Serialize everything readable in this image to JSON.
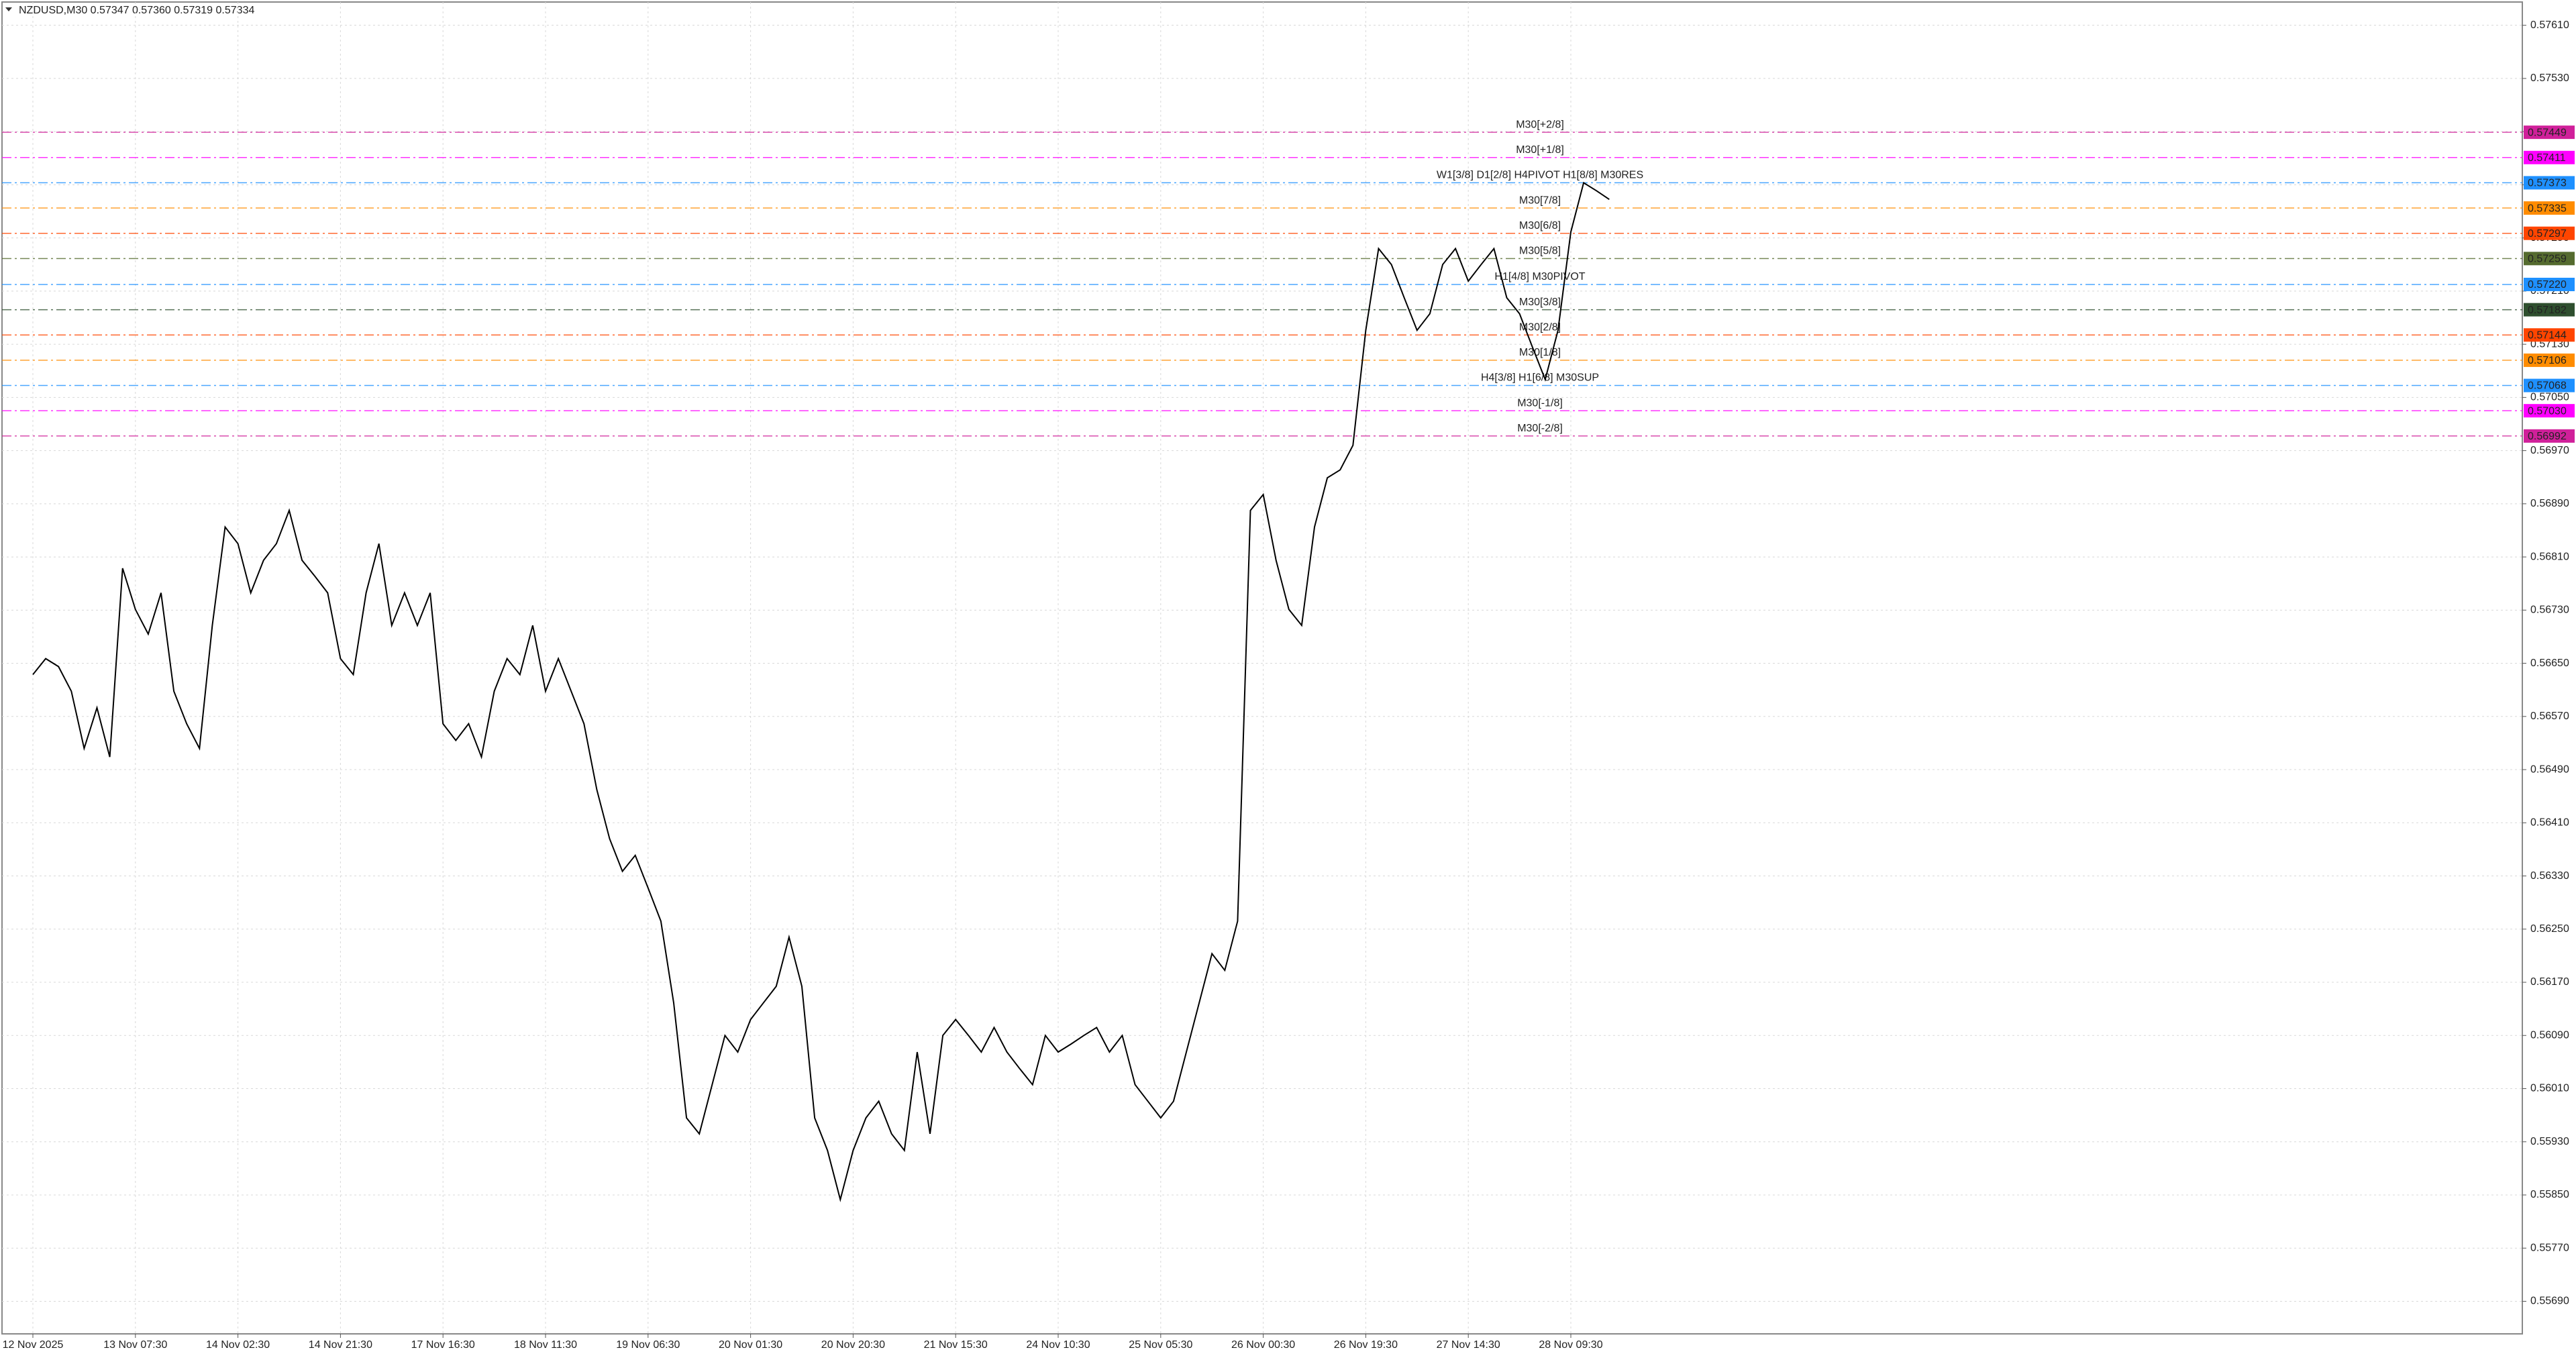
{
  "chart_data": {
    "type": "line",
    "title": "NZDUSD,M30  0.57347 0.57360 0.57319 0.57334",
    "categories": [
      "12 Nov 2025",
      null,
      null,
      null,
      null,
      null,
      null,
      null,
      "13 Nov 07:30",
      null,
      null,
      null,
      null,
      null,
      null,
      null,
      "14 Nov 02:30",
      null,
      null,
      null,
      null,
      null,
      null,
      null,
      "14 Nov 21:30",
      null,
      null,
      null,
      null,
      null,
      null,
      null,
      "17 Nov 16:30",
      null,
      null,
      null,
      null,
      null,
      null,
      null,
      "18 Nov 11:30",
      null,
      null,
      null,
      null,
      null,
      null,
      null,
      "19 Nov 06:30",
      null,
      null,
      null,
      null,
      null,
      null,
      null,
      "20 Nov 01:30",
      null,
      null,
      null,
      null,
      null,
      null,
      null,
      "20 Nov 20:30",
      null,
      null,
      null,
      null,
      null,
      null,
      null,
      "21 Nov 15:30",
      null,
      null,
      null,
      null,
      null,
      null,
      null,
      "24 Nov 10:30",
      null,
      null,
      null,
      null,
      null,
      null,
      null,
      "25 Nov 05:30",
      null,
      null,
      null,
      null,
      null,
      null,
      null,
      "26 Nov 00:30",
      null,
      null,
      null,
      null,
      null,
      null,
      null,
      "26 Nov 19:30",
      null,
      null,
      null,
      null,
      null,
      null,
      null,
      "27 Nov 14:30",
      null,
      null,
      null,
      null,
      null,
      null,
      null,
      "28 Nov 09:30",
      null,
      null,
      null
    ],
    "series": [
      {
        "name": "NZDUSD",
        "color": "#000000",
        "values": [
          0.56633,
          0.56657,
          0.56645,
          0.56608,
          0.56522,
          0.56583,
          0.56509,
          0.56793,
          0.56731,
          0.56694,
          0.56756,
          0.56608,
          0.56559,
          0.56522,
          0.56707,
          0.56855,
          0.5683,
          0.56756,
          0.56805,
          0.5683,
          0.5688,
          0.56805,
          0.56781,
          0.56756,
          0.56657,
          0.56633,
          0.56756,
          0.5683,
          0.56707,
          0.56756,
          0.56707,
          0.56756,
          0.56559,
          0.56534,
          0.56559,
          0.56509,
          0.56608,
          0.56657,
          0.56633,
          0.56707,
          0.56608,
          0.56657,
          0.56608,
          0.56559,
          0.5646,
          0.56386,
          0.56337,
          0.56361,
          0.56312,
          0.56262,
          0.56139,
          0.55966,
          0.55942,
          0.56016,
          0.5609,
          0.56065,
          0.56114,
          0.56139,
          0.56164,
          0.56238,
          0.56164,
          0.55966,
          0.55917,
          0.55843,
          0.55917,
          0.55966,
          0.55991,
          0.55942,
          0.55917,
          0.56065,
          0.55942,
          0.5609,
          0.56114,
          0.5609,
          0.56065,
          0.56102,
          0.56065,
          0.5604,
          0.56016,
          0.5609,
          0.56065,
          0.56077,
          0.5609,
          0.56102,
          0.56065,
          0.5609,
          0.56016,
          0.55991,
          0.55966,
          0.55991,
          0.56065,
          0.56139,
          0.56213,
          0.56188,
          0.56262,
          0.5688,
          0.56904,
          0.56805,
          0.56731,
          0.56707,
          0.56855,
          0.56929,
          0.56941,
          0.56978,
          0.57151,
          0.57274,
          0.5725,
          0.572,
          0.57151,
          0.57176,
          0.5725,
          0.57274,
          0.57225,
          0.5725,
          0.57274,
          0.572,
          0.57176,
          0.57126,
          0.57077,
          0.57151,
          0.57299,
          0.57373,
          0.57361,
          0.57348
        ]
      }
    ],
    "ylim": [
      0.55641,
      0.57645
    ],
    "yticks": [
      {
        "value": 0.5761,
        "label": "0.57610"
      },
      {
        "value": 0.5753,
        "label": "0.57530"
      },
      {
        "value": 0.5745,
        "label": "0.57450"
      },
      {
        "value": 0.5737,
        "label": "0.57370"
      },
      {
        "value": 0.5729,
        "label": "0.57290"
      },
      {
        "value": 0.5721,
        "label": "0.57210"
      },
      {
        "value": 0.5713,
        "label": "0.57130"
      },
      {
        "value": 0.5705,
        "label": "0.57050"
      },
      {
        "value": 0.5697,
        "label": "0.56970"
      },
      {
        "value": 0.5689,
        "label": "0.56890"
      },
      {
        "value": 0.5681,
        "label": "0.56810"
      },
      {
        "value": 0.5673,
        "label": "0.56730"
      },
      {
        "value": 0.5665,
        "label": "0.56650"
      },
      {
        "value": 0.5657,
        "label": "0.56570"
      },
      {
        "value": 0.5649,
        "label": "0.56490"
      },
      {
        "value": 0.5641,
        "label": "0.56410"
      },
      {
        "value": 0.5633,
        "label": "0.56330"
      },
      {
        "value": 0.5625,
        "label": "0.56250"
      },
      {
        "value": 0.5617,
        "label": "0.56170"
      },
      {
        "value": 0.5609,
        "label": "0.56090"
      },
      {
        "value": 0.5601,
        "label": "0.56010"
      },
      {
        "value": 0.5593,
        "label": "0.55930"
      },
      {
        "value": 0.5585,
        "label": "0.55850"
      },
      {
        "value": 0.5577,
        "label": "0.55770"
      },
      {
        "value": 0.5569,
        "label": "0.55690"
      }
    ],
    "grid": true,
    "levels": {
      "names": [
        "M30[+2/8]",
        "M30[+1/8]",
        "W1[3/8] D1[2/8] H4PIVOT H1[8/8] M30RES",
        "M30[7/8]",
        "M30[6/8]",
        "M30[5/8]",
        "H1[4/8] M30PIVOT",
        "M30[3/8]",
        "M30[2/8]",
        "M30[1/8]",
        "H4[3/8] H1[6/8] M30SUP",
        "M30[-1/8]",
        "M30[-2/8]"
      ],
      "values": [
        0.57449,
        0.57411,
        0.57373,
        0.57335,
        0.57297,
        0.57259,
        0.5722,
        0.57182,
        0.57144,
        0.57106,
        0.57068,
        0.5703,
        0.56992
      ],
      "value_labels": [
        "0.57449",
        "0.57411",
        "0.57373",
        "0.57335",
        "0.57297",
        "0.57259",
        "0.57220",
        "0.57182",
        "0.57144",
        "0.57106",
        "0.57068",
        "0.57030",
        "0.56992"
      ],
      "colors": [
        "#d0209a",
        "#ff00ff",
        "#1e90ff",
        "#ff8c00",
        "#ff4500",
        "#556b2f",
        "#1e90ff",
        "#2f4f2f",
        "#ff4500",
        "#ff8c00",
        "#1e90ff",
        "#ff00ff",
        "#d0209a"
      ]
    }
  }
}
